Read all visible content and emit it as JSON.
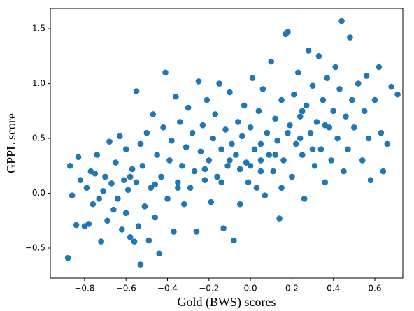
{
  "chart_data": {
    "type": "scatter",
    "x_label": "Gold (BWS) scores",
    "y_label": "GPPL score",
    "color": "#1f77b4",
    "xlim": [
      -0.965,
      0.735
    ],
    "ylim": [
      -0.774,
      1.685
    ],
    "xticks": [
      {
        "value": -0.8,
        "label": "−0.8"
      },
      {
        "value": -0.6,
        "label": "−0.6"
      },
      {
        "value": -0.4,
        "label": "−0.4"
      },
      {
        "value": -0.2,
        "label": "−0.2"
      },
      {
        "value": 0,
        "label": "0.0"
      },
      0.2,
      0.4,
      0.6
    ],
    "yticks": [
      {
        "value": -0.5,
        "label": "−0.5"
      },
      {
        "value": 0,
        "label": "0.0"
      },
      0.5,
      {
        "value": 1,
        "label": "1.0"
      },
      1.5
    ],
    "x": [
      -0.88,
      -0.87,
      -0.86,
      -0.83,
      -0.82,
      -0.8,
      -0.79,
      -0.78,
      -0.77,
      -0.76,
      -0.75,
      -0.74,
      -0.72,
      -0.71,
      -0.7,
      -0.69,
      -0.68,
      -0.67,
      -0.66,
      -0.65,
      -0.64,
      -0.63,
      -0.62,
      -0.61,
      -0.6,
      -0.6,
      -0.59,
      -0.58,
      -0.57,
      -0.56,
      -0.55,
      -0.55,
      -0.54,
      -0.53,
      -0.53,
      -0.52,
      -0.51,
      -0.5,
      -0.49,
      -0.48,
      -0.47,
      -0.46,
      -0.45,
      -0.44,
      -0.43,
      -0.42,
      -0.41,
      -0.4,
      -0.39,
      -0.38,
      -0.37,
      -0.36,
      -0.35,
      -0.34,
      -0.33,
      -0.32,
      -0.31,
      -0.3,
      -0.29,
      -0.28,
      -0.27,
      -0.26,
      -0.25,
      -0.24,
      -0.23,
      -0.22,
      -0.21,
      -0.2,
      -0.19,
      -0.18,
      -0.17,
      -0.16,
      -0.15,
      -0.14,
      -0.13,
      -0.12,
      -0.11,
      -0.1,
      -0.09,
      -0.08,
      -0.07,
      -0.06,
      -0.05,
      -0.04,
      -0.03,
      -0.02,
      -0.01,
      0.0,
      0.01,
      0.02,
      0.03,
      0.04,
      0.05,
      0.06,
      0.07,
      0.08,
      0.09,
      0.1,
      0.11,
      0.12,
      0.13,
      0.14,
      0.15,
      0.16,
      0.17,
      0.18,
      0.19,
      0.2,
      0.21,
      0.22,
      0.23,
      0.24,
      0.25,
      0.26,
      0.27,
      0.28,
      0.29,
      0.3,
      0.31,
      0.32,
      0.33,
      0.34,
      0.35,
      0.36,
      0.37,
      0.38,
      0.39,
      0.4,
      0.41,
      0.42,
      0.43,
      0.44,
      0.45,
      0.46,
      0.47,
      0.48,
      0.49,
      0.5,
      0.52,
      0.54,
      0.55,
      0.56,
      0.57,
      0.58,
      0.6,
      0.62,
      0.63,
      0.64,
      0.66,
      0.68,
      0.71,
      -0.84,
      -0.73,
      -0.58,
      -0.46,
      -0.35,
      -0.22,
      -0.14,
      -0.05,
      0.05,
      0.12,
      0.18,
      0.24,
      0.3,
      0.36,
      0.05,
      -0.1,
      0.25,
      0.15,
      0.0
    ],
    "y": [
      -0.59,
      0.25,
      -0.02,
      0.33,
      0.12,
      -0.3,
      0.05,
      -0.28,
      0.2,
      -0.1,
      0.18,
      0.35,
      -0.44,
      0.02,
      0.15,
      -0.25,
      0.47,
      0.09,
      -0.15,
      0.28,
      -0.05,
      0.52,
      -0.33,
      0.12,
      0.4,
      -0.18,
      0.03,
      -0.4,
      0.22,
      -0.44,
      0.93,
      0.1,
      -0.3,
      -0.65,
      0.45,
      0.25,
      -0.12,
      0.55,
      -0.43,
      0.05,
      0.72,
      -0.22,
      0.35,
      -0.55,
      0.15,
      0.6,
      1.1,
      -0.05,
      0.3,
      0.48,
      -0.35,
      0.88,
      0.1,
      0.65,
      0.25,
      -0.1,
      0.42,
      0.78,
      0.05,
      0.55,
      0.2,
      -0.35,
      1.02,
      0.38,
      0.62,
      0.12,
      0.85,
      0.3,
      -0.08,
      0.5,
      0.72,
      0.15,
      1.0,
      0.4,
      -0.32,
      0.58,
      0.25,
      0.92,
      0.45,
      -0.43,
      0.35,
      0.65,
      -0.1,
      0.52,
      0.8,
      0.28,
      0.1,
      0.6,
      1.05,
      0.4,
      0.05,
      0.75,
      0.3,
      0.95,
      -0.02,
      0.55,
      0.35,
      1.2,
      0.2,
      0.68,
      0.48,
      -0.23,
      0.85,
      0.3,
      1.45,
      1.47,
      0.62,
      0.15,
      0.9,
      0.45,
      1.1,
      0.7,
      0.35,
      -0.05,
      0.8,
      1.3,
      0.55,
      0.98,
      0.25,
      0.65,
      1.25,
      0.4,
      0.85,
      0.1,
      1.05,
      0.6,
      0.3,
      0.75,
      1.15,
      0.5,
      0.95,
      1.57,
      0.2,
      0.7,
      0.4,
      1.42,
      0.85,
      0.6,
      1.0,
      0.3,
      0.75,
      1.07,
      0.5,
      0.12,
      0.85,
      1.15,
      0.55,
      0.2,
      0.45,
      0.97,
      0.9,
      -0.29,
      -0.05,
      0.15,
      0.08,
      0.05,
      0.22,
      0.1,
      0.22,
      0.45,
      0.35,
      0.55,
      0.5,
      0.4,
      0.62,
      0.2,
      0.3,
      0.75,
      0.05,
      0.25
    ]
  }
}
